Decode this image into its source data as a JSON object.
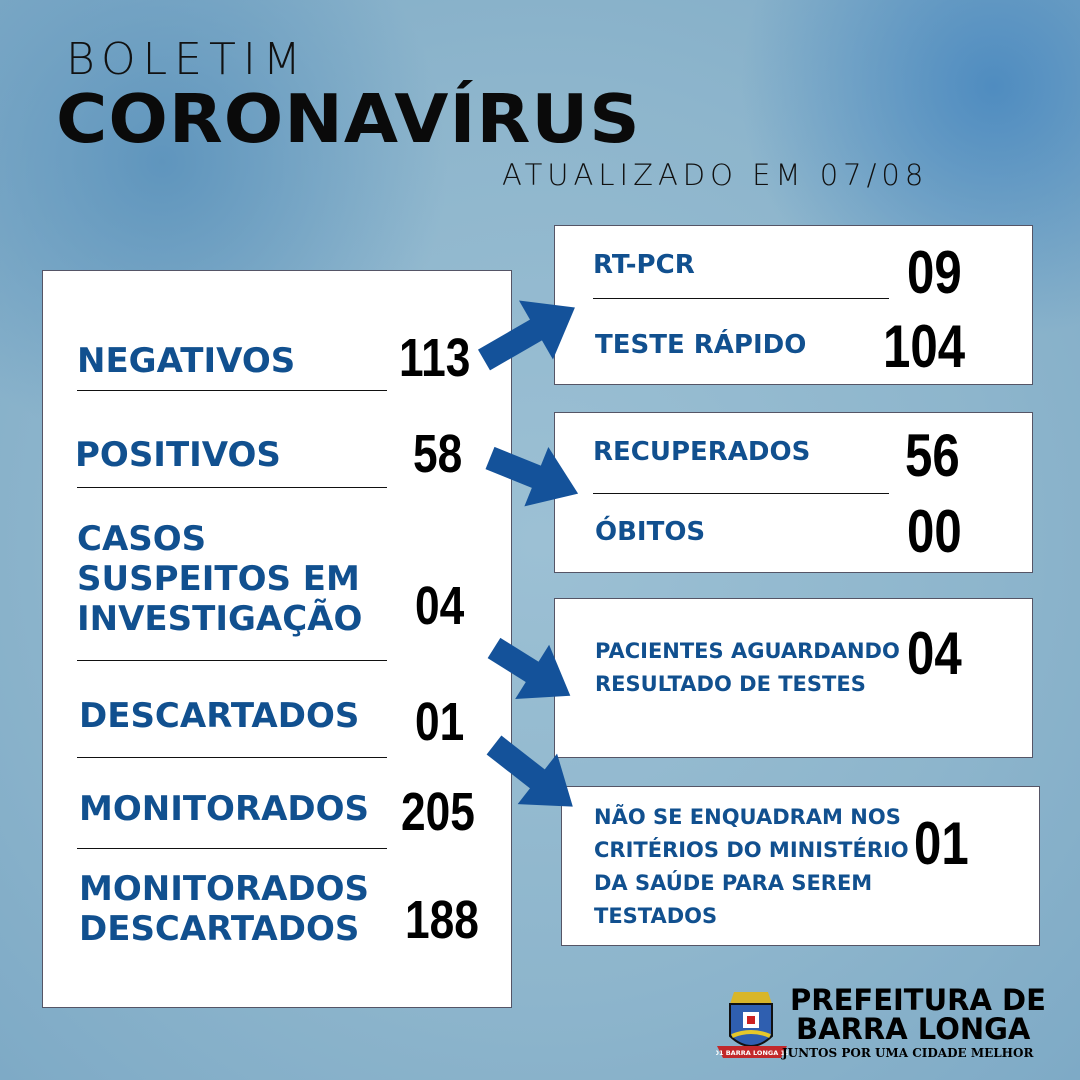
{
  "header": {
    "line1": "BOLETIM",
    "line2": "CORONAVÍRUS",
    "updated": "ATUALIZADO EM 07/08"
  },
  "left": [
    {
      "label": "NEGATIVOS",
      "value": "113"
    },
    {
      "label": "POSITIVOS",
      "value": "58"
    },
    {
      "label": "CASOS SUSPEITOS EM INVESTIGAÇÃO",
      "value": "04"
    },
    {
      "label": "DESCARTADOS",
      "value": "01"
    },
    {
      "label": "MONITORADOS",
      "value": "205"
    },
    {
      "label": "MONITORADOS DESCARTADOS",
      "value": "188"
    }
  ],
  "tests": {
    "rtpcr_label": "RT-PCR",
    "rtpcr_value": "09",
    "rapid_label": "TESTE RÁPIDO",
    "rapid_value": "104"
  },
  "outcomes": {
    "recovered_label": "RECUPERADOS",
    "recovered_value": "56",
    "deaths_label": "ÓBITOS",
    "deaths_value": "00"
  },
  "awaiting": {
    "label": "PACIENTES AGUARDANDO RESULTADO DE TESTES",
    "value": "04"
  },
  "notcriteria": {
    "label": "NÃO SE ENQUADRAM NOS CRITÉRIOS DO MINISTÉRIO DA SAÚDE PARA SEREM TESTADOS",
    "value": "01"
  },
  "footer": {
    "line1": "PREFEITURA DE",
    "line2": "BARRA LONGA",
    "slogan": "JUNTOS POR UMA CIDADE MELHOR",
    "crest_text": "1701 BARRA LONGA 1938"
  },
  "colors": {
    "label": "#11508f",
    "arrow": "#14529a",
    "background": "#8db5cc"
  }
}
